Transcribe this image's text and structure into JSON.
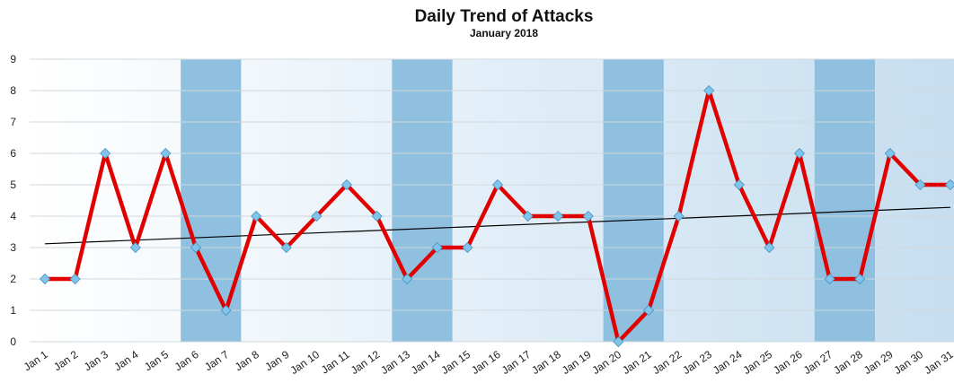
{
  "chart_data": {
    "type": "line",
    "title": "Daily Trend of Attacks",
    "subtitle": "January 2018",
    "xlabel": "",
    "ylabel": "",
    "ylim": [
      0,
      9
    ],
    "yticks": [
      0,
      1,
      2,
      3,
      4,
      5,
      6,
      7,
      8,
      9
    ],
    "categories": [
      "Jan 1",
      "Jan 2",
      "Jan 3",
      "Jan 4",
      "Jan 5",
      "Jan 6",
      "Jan 7",
      "Jan 8",
      "Jan 9",
      "Jan 10",
      "Jan 11",
      "Jan 12",
      "Jan 13",
      "Jan 14",
      "Jan 15",
      "Jan 16",
      "Jan 17",
      "Jan 18",
      "Jan 19",
      "Jan 20",
      "Jan 21",
      "Jan 22",
      "Jan 23",
      "Jan 24",
      "Jan 25",
      "Jan 26",
      "Jan 27",
      "Jan 28",
      "Jan 29",
      "Jan 30",
      "Jan 31"
    ],
    "series": [
      {
        "values": [
          2,
          2,
          6,
          3,
          6,
          3,
          1,
          4,
          3,
          4,
          5,
          4,
          2,
          3,
          3,
          5,
          4,
          4,
          4,
          0,
          1,
          4,
          8,
          5,
          3,
          6,
          2,
          2,
          6,
          5,
          5
        ],
        "color": "#e00000",
        "marker_color": "#7fc4ea"
      }
    ],
    "trendline": {
      "type": "linear",
      "start": 3.12,
      "end": 4.28,
      "color": "#000000"
    },
    "weekend_bands": [
      [
        "Jan 6",
        "Jan 7"
      ],
      [
        "Jan 13",
        "Jan 14"
      ],
      [
        "Jan 20",
        "Jan 21"
      ],
      [
        "Jan 27",
        "Jan 28"
      ]
    ],
    "colors": {
      "weekend_band": "#8fc0e0",
      "background_light": "#ffffff",
      "background_dark": "#c6def0",
      "grid": "#cfd8de"
    },
    "grid": true,
    "legend": "none"
  }
}
